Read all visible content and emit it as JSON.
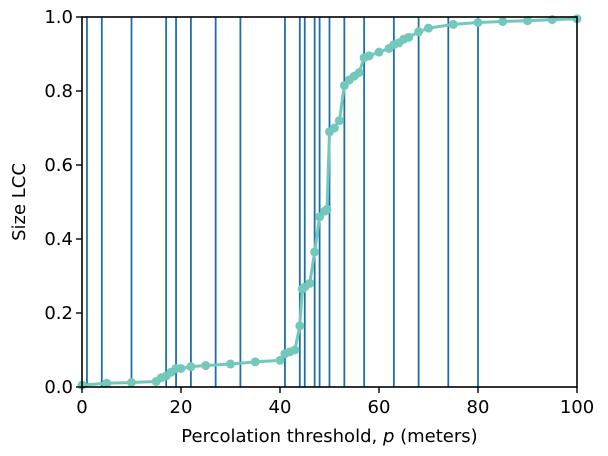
{
  "chart_data": {
    "type": "line",
    "title": "",
    "xlabel_prefix": "Percolation threshold, ",
    "xlabel_var": "p",
    "xlabel_suffix": " (meters)",
    "ylabel": "Size LCC",
    "xlim": [
      0,
      100
    ],
    "ylim": [
      0,
      1.0
    ],
    "xticks": [
      0,
      20,
      40,
      60,
      80,
      100
    ],
    "xtick_labels": [
      "0",
      "20",
      "40",
      "60",
      "80",
      "100"
    ],
    "yticks": [
      0.0,
      0.2,
      0.4,
      0.6,
      0.8,
      1.0
    ],
    "ytick_labels": [
      "0.0",
      "0.2",
      "0.4",
      "0.6",
      "0.8",
      "1.0"
    ],
    "grid": false,
    "series": [
      {
        "color": "#72c9bb",
        "marker": "circle",
        "x": [
          0,
          5,
          10,
          15,
          16,
          17,
          18,
          19,
          20,
          22,
          25,
          30,
          35,
          40,
          41,
          42,
          43,
          44,
          44.5,
          45,
          46,
          47,
          48,
          49,
          49.5,
          50,
          51,
          52,
          53,
          54,
          55,
          56,
          57,
          58,
          60,
          62,
          63,
          64,
          65,
          66,
          68,
          70,
          75,
          80,
          85,
          90,
          95,
          100
        ],
        "y": [
          0.005,
          0.01,
          0.012,
          0.015,
          0.025,
          0.03,
          0.04,
          0.05,
          0.05,
          0.055,
          0.058,
          0.062,
          0.068,
          0.072,
          0.09,
          0.095,
          0.1,
          0.165,
          0.265,
          0.27,
          0.28,
          0.365,
          0.46,
          0.475,
          0.48,
          0.69,
          0.7,
          0.72,
          0.815,
          0.83,
          0.84,
          0.85,
          0.89,
          0.895,
          0.905,
          0.915,
          0.925,
          0.93,
          0.94,
          0.945,
          0.96,
          0.97,
          0.98,
          0.985,
          0.988,
          0.99,
          0.993,
          0.995
        ]
      }
    ],
    "vlines": {
      "color": "#1f6ea8",
      "x": [
        1,
        4,
        10,
        17,
        19,
        22,
        27,
        32,
        41,
        44,
        45,
        47,
        48,
        50,
        53,
        57,
        63,
        68,
        74,
        80
      ]
    }
  }
}
